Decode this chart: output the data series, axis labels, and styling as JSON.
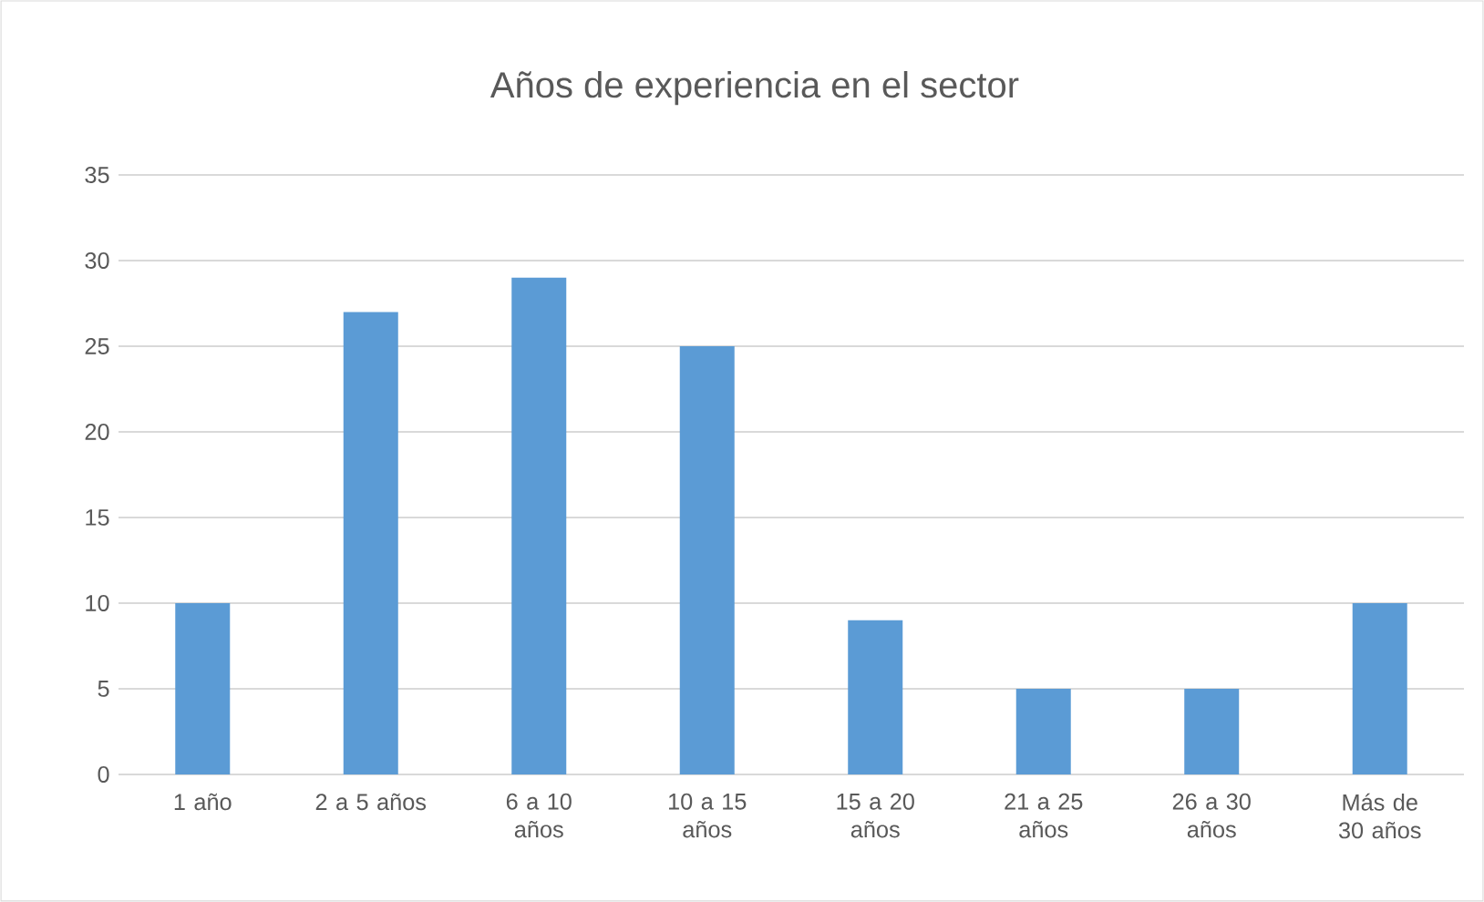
{
  "chart_data": {
    "type": "bar",
    "title": "Años de experiencia en el sector",
    "categories": [
      "1 año",
      "2 a 5 años",
      "6 a 10 años",
      "10 a 15 años",
      "15 a 20 años",
      "21 a 25 años",
      "26 a 30 años",
      "Más de 30 años"
    ],
    "values": [
      10,
      27,
      29,
      25,
      9,
      5,
      5,
      10
    ],
    "color": "#5b9bd5",
    "ylim": [
      0,
      35
    ],
    "yticks": [
      0,
      5,
      10,
      15,
      20,
      25,
      30,
      35
    ],
    "grid": "y"
  }
}
